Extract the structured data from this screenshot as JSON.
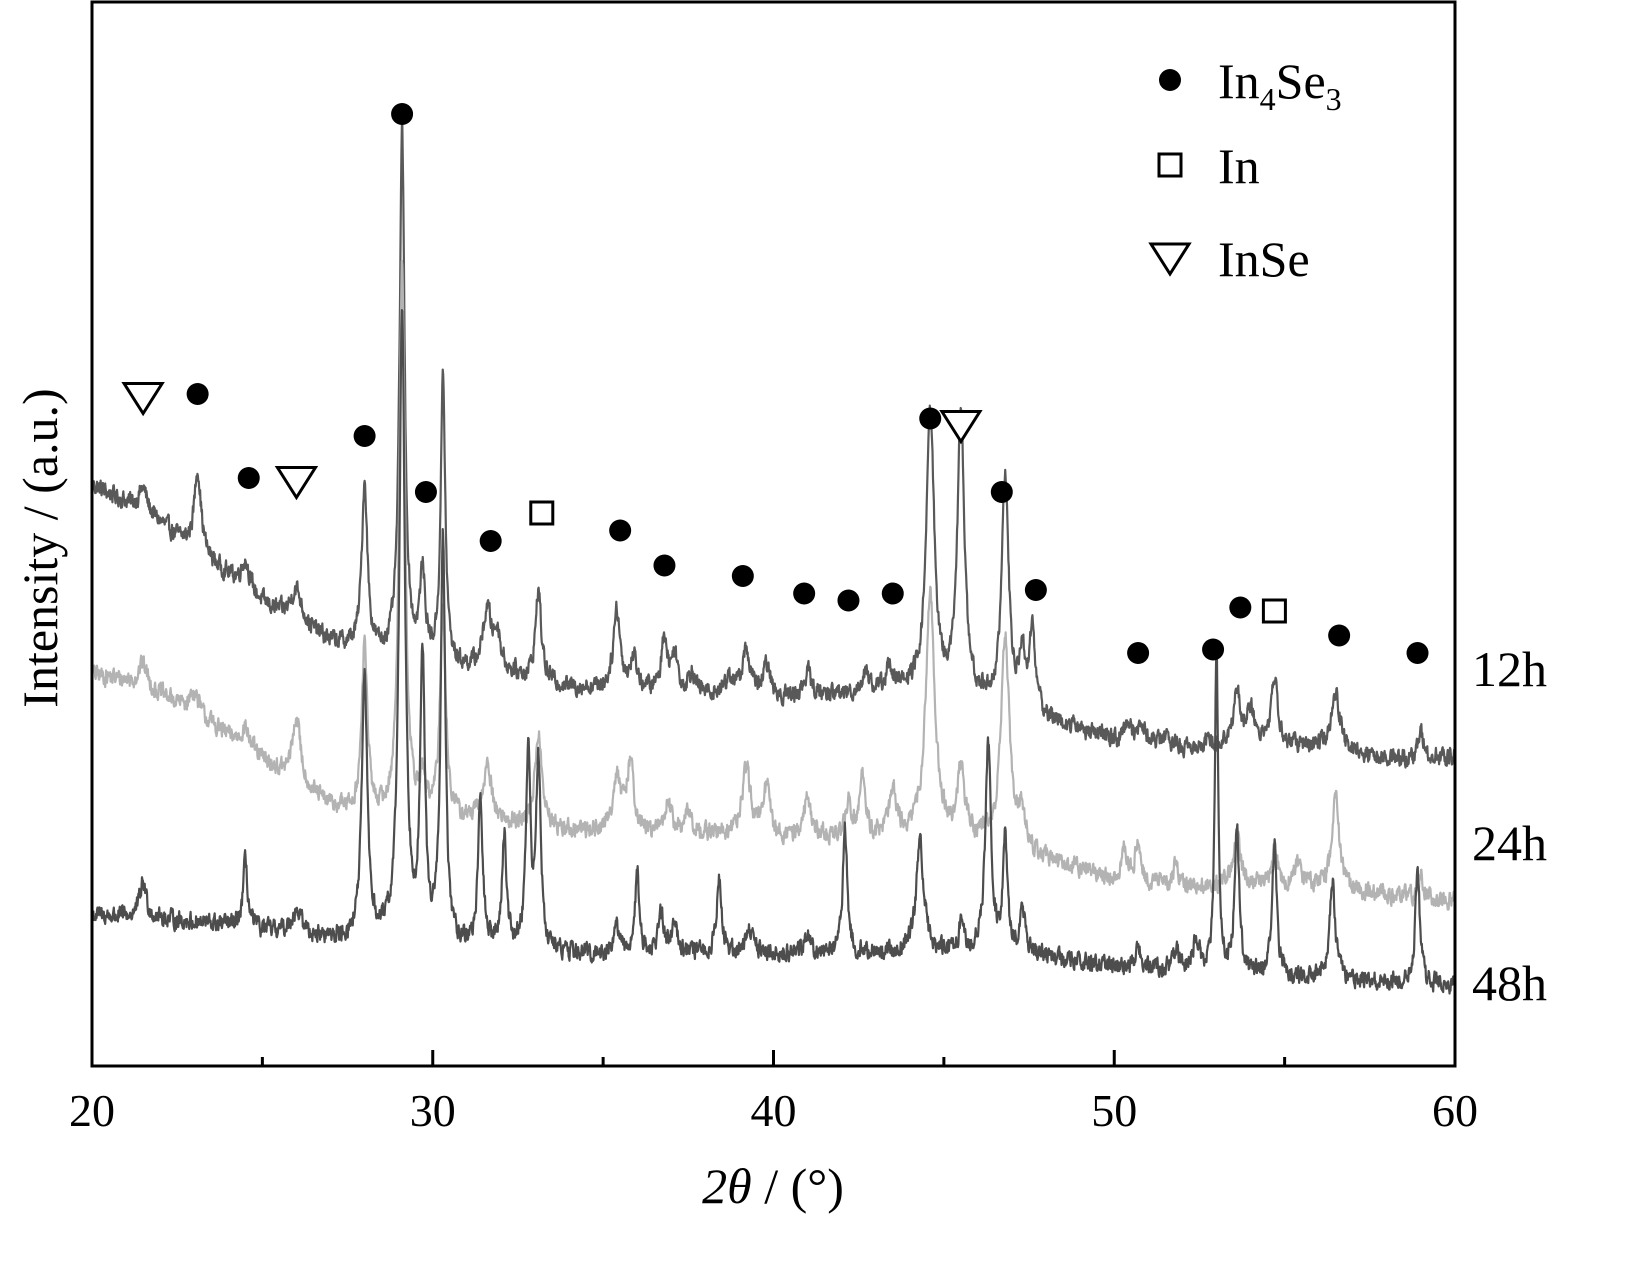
{
  "chart_data": {
    "type": "line",
    "title": "",
    "xlabel_parts": {
      "italic": "2θ",
      "rest": " / (°)"
    },
    "ylabel": "Intensity / (a.u.)",
    "xlim": [
      20,
      60
    ],
    "x_ticks": [
      20,
      30,
      40,
      50,
      60
    ],
    "x_minor_ticks": [
      25,
      35,
      45,
      55
    ],
    "y_ticks_shown": false,
    "grid": false,
    "legend": {
      "placement": "top-right",
      "entries": [
        {
          "marker": "filled-circle",
          "parts": [
            "In",
            "4",
            "Se",
            "3"
          ]
        },
        {
          "marker": "open-square",
          "label": "In"
        },
        {
          "marker": "open-triangle-down",
          "label": "InSe"
        }
      ]
    },
    "series": [
      {
        "name": "12h",
        "color": "#595959",
        "baseline": [
          [
            20,
            7.5
          ],
          [
            21,
            7.25
          ],
          [
            22,
            6.95
          ],
          [
            23,
            6.55
          ],
          [
            24,
            6.2
          ],
          [
            25,
            5.8
          ],
          [
            26,
            5.5
          ],
          [
            27,
            5.25
          ],
          [
            28,
            5.1
          ],
          [
            29,
            5.0
          ],
          [
            30,
            4.9
          ],
          [
            32,
            4.8
          ],
          [
            34,
            4.6
          ],
          [
            36,
            4.55
          ],
          [
            38,
            4.5
          ],
          [
            40,
            4.45
          ],
          [
            42,
            4.5
          ],
          [
            44,
            4.55
          ],
          [
            46,
            4.4
          ],
          [
            48,
            4.15
          ],
          [
            50,
            3.85
          ],
          [
            52,
            3.75
          ],
          [
            54,
            3.85
          ],
          [
            56,
            3.75
          ],
          [
            58,
            3.6
          ],
          [
            60,
            3.6
          ]
        ],
        "peaks": [
          [
            21.5,
            0.35,
            0.15
          ],
          [
            23.1,
            1.2,
            0.12
          ],
          [
            24.5,
            0.4,
            0.15
          ],
          [
            26.0,
            0.5,
            0.2
          ],
          [
            28.0,
            2.4,
            0.1
          ],
          [
            29.1,
            7.5,
            0.09
          ],
          [
            29.7,
            1.2,
            0.1
          ],
          [
            30.3,
            4.1,
            0.08
          ],
          [
            31.6,
            0.85,
            0.15
          ],
          [
            31.9,
            0.5,
            0.12
          ],
          [
            33.1,
            1.3,
            0.1
          ],
          [
            35.4,
            1.15,
            0.12
          ],
          [
            35.9,
            0.45,
            0.12
          ],
          [
            36.8,
            0.8,
            0.1
          ],
          [
            37.1,
            0.55,
            0.1
          ],
          [
            37.6,
            0.3,
            0.12
          ],
          [
            38.7,
            0.25,
            0.15
          ],
          [
            39.2,
            0.65,
            0.14
          ],
          [
            39.8,
            0.45,
            0.12
          ],
          [
            41.0,
            0.35,
            0.12
          ],
          [
            42.7,
            0.3,
            0.12
          ],
          [
            43.4,
            0.35,
            0.12
          ],
          [
            44.6,
            4.0,
            0.14
          ],
          [
            45.5,
            4.1,
            0.12
          ],
          [
            46.8,
            3.3,
            0.12
          ],
          [
            47.3,
            0.8,
            0.1
          ],
          [
            47.6,
            1.2,
            0.1
          ],
          [
            50.4,
            0.25,
            0.12
          ],
          [
            50.8,
            0.3,
            0.12
          ],
          [
            51.5,
            0.15,
            0.12
          ],
          [
            53.6,
            0.7,
            0.12
          ],
          [
            54.0,
            0.45,
            0.12
          ],
          [
            54.7,
            0.95,
            0.1
          ],
          [
            56.5,
            0.8,
            0.14
          ],
          [
            59.0,
            0.35,
            0.1
          ]
        ]
      },
      {
        "name": "24h",
        "color": "#b3b3b3",
        "baseline": [
          [
            20,
            4.8
          ],
          [
            21,
            4.7
          ],
          [
            22,
            4.5
          ],
          [
            23,
            4.25
          ],
          [
            24,
            3.9
          ],
          [
            25,
            3.55
          ],
          [
            26,
            3.2
          ],
          [
            27,
            2.9
          ],
          [
            28,
            2.75
          ],
          [
            29,
            2.7
          ],
          [
            30,
            2.7
          ],
          [
            32,
            2.65
          ],
          [
            34,
            2.55
          ],
          [
            36,
            2.5
          ],
          [
            38,
            2.5
          ],
          [
            40,
            2.45
          ],
          [
            42,
            2.45
          ],
          [
            44,
            2.45
          ],
          [
            46,
            2.4
          ],
          [
            48,
            2.15
          ],
          [
            50,
            1.85
          ],
          [
            52,
            1.75
          ],
          [
            54,
            1.8
          ],
          [
            56,
            1.75
          ],
          [
            58,
            1.65
          ],
          [
            60,
            1.55
          ]
        ],
        "peaks": [
          [
            21.5,
            0.35,
            0.15
          ],
          [
            23.0,
            0.3,
            0.15
          ],
          [
            24.5,
            0.3,
            0.15
          ],
          [
            26.0,
            0.95,
            0.15
          ],
          [
            28.0,
            2.45,
            0.1
          ],
          [
            29.1,
            8.0,
            0.1
          ],
          [
            29.7,
            0.5,
            0.1
          ],
          [
            30.3,
            3.0,
            0.1
          ],
          [
            31.6,
            0.8,
            0.15
          ],
          [
            33.1,
            1.35,
            0.12
          ],
          [
            35.4,
            0.8,
            0.14
          ],
          [
            35.8,
            1.0,
            0.12
          ],
          [
            36.9,
            0.45,
            0.12
          ],
          [
            37.5,
            0.3,
            0.12
          ],
          [
            39.2,
            0.95,
            0.15
          ],
          [
            39.8,
            0.7,
            0.12
          ],
          [
            41.0,
            0.6,
            0.12
          ],
          [
            42.2,
            0.5,
            0.1
          ],
          [
            42.6,
            0.9,
            0.1
          ],
          [
            43.5,
            0.65,
            0.12
          ],
          [
            44.6,
            3.5,
            0.16
          ],
          [
            45.5,
            1.0,
            0.12
          ],
          [
            46.8,
            3.0,
            0.15
          ],
          [
            47.3,
            0.5,
            0.12
          ],
          [
            50.3,
            0.4,
            0.1
          ],
          [
            50.7,
            0.6,
            0.1
          ],
          [
            51.8,
            0.3,
            0.1
          ],
          [
            53.6,
            0.65,
            0.12
          ],
          [
            54.7,
            0.55,
            0.1
          ],
          [
            55.4,
            0.35,
            0.1
          ],
          [
            56.5,
            1.35,
            0.12
          ],
          [
            59.0,
            0.3,
            0.1
          ]
        ]
      },
      {
        "name": "48h",
        "color": "#4d4d4d",
        "baseline": [
          [
            20,
            1.35
          ],
          [
            22,
            1.3
          ],
          [
            24,
            1.2
          ],
          [
            26,
            1.05
          ],
          [
            28,
            0.95
          ],
          [
            30,
            0.9
          ],
          [
            32,
            0.85
          ],
          [
            34,
            0.8
          ],
          [
            36,
            0.75
          ],
          [
            38,
            0.8
          ],
          [
            40,
            0.8
          ],
          [
            42,
            0.8
          ],
          [
            44,
            0.8
          ],
          [
            46,
            0.8
          ],
          [
            48,
            0.75
          ],
          [
            50,
            0.6
          ],
          [
            52,
            0.55
          ],
          [
            54,
            0.5
          ],
          [
            56,
            0.45
          ],
          [
            58,
            0.4
          ],
          [
            60,
            0.35
          ]
        ],
        "peaks": [
          [
            21.5,
            0.5,
            0.12
          ],
          [
            24.5,
            0.95,
            0.08
          ],
          [
            26.0,
            0.35,
            0.2
          ],
          [
            28.0,
            3.7,
            0.1
          ],
          [
            29.1,
            9.0,
            0.1
          ],
          [
            29.7,
            4.0,
            0.08
          ],
          [
            30.3,
            5.8,
            0.08
          ],
          [
            31.4,
            2.1,
            0.08
          ],
          [
            32.1,
            1.6,
            0.08
          ],
          [
            32.8,
            2.8,
            0.08
          ],
          [
            33.1,
            2.7,
            0.08
          ],
          [
            35.4,
            0.4,
            0.12
          ],
          [
            36.0,
            1.2,
            0.08
          ],
          [
            36.7,
            0.6,
            0.1
          ],
          [
            37.1,
            0.5,
            0.1
          ],
          [
            38.4,
            1.1,
            0.08
          ],
          [
            39.3,
            0.35,
            0.14
          ],
          [
            41.0,
            0.3,
            0.1
          ],
          [
            42.1,
            1.75,
            0.08
          ],
          [
            44.3,
            1.55,
            0.14
          ],
          [
            45.5,
            0.35,
            0.1
          ],
          [
            46.3,
            3.0,
            0.1
          ],
          [
            46.8,
            1.6,
            0.08
          ],
          [
            47.3,
            0.6,
            0.1
          ],
          [
            50.7,
            0.35,
            0.1
          ],
          [
            51.8,
            0.3,
            0.1
          ],
          [
            52.4,
            0.5,
            0.1
          ],
          [
            53.0,
            4.6,
            0.06
          ],
          [
            53.6,
            2.1,
            0.08
          ],
          [
            54.7,
            1.85,
            0.08
          ],
          [
            56.4,
            1.4,
            0.1
          ],
          [
            58.9,
            1.6,
            0.08
          ]
        ]
      }
    ],
    "peak_markers": [
      {
        "phase": "InSe",
        "marker": "open-triangle-down",
        "x": 21.5,
        "y": 8.75
      },
      {
        "phase": "In4Se3",
        "marker": "filled-circle",
        "x": 23.1,
        "y": 8.8
      },
      {
        "phase": "In4Se3",
        "marker": "filled-circle",
        "x": 24.6,
        "y": 7.6
      },
      {
        "phase": "InSe",
        "marker": "open-triangle-down",
        "x": 26.0,
        "y": 7.55
      },
      {
        "phase": "In4Se3",
        "marker": "filled-circle",
        "x": 28.0,
        "y": 8.2
      },
      {
        "phase": "In4Se3",
        "marker": "filled-circle",
        "x": 29.1,
        "y": 12.8
      },
      {
        "phase": "In4Se3",
        "marker": "filled-circle",
        "x": 29.8,
        "y": 7.4
      },
      {
        "phase": "In4Se3",
        "marker": "filled-circle",
        "x": 31.7,
        "y": 6.7
      },
      {
        "phase": "In",
        "marker": "open-square",
        "x": 33.2,
        "y": 7.1
      },
      {
        "phase": "In4Se3",
        "marker": "filled-circle",
        "x": 35.5,
        "y": 6.85
      },
      {
        "phase": "In4Se3",
        "marker": "filled-circle",
        "x": 36.8,
        "y": 6.35
      },
      {
        "phase": "In4Se3",
        "marker": "filled-circle",
        "x": 39.1,
        "y": 6.2
      },
      {
        "phase": "In4Se3",
        "marker": "filled-circle",
        "x": 40.9,
        "y": 5.95
      },
      {
        "phase": "In4Se3",
        "marker": "filled-circle",
        "x": 42.2,
        "y": 5.85
      },
      {
        "phase": "In4Se3",
        "marker": "filled-circle",
        "x": 43.5,
        "y": 5.95
      },
      {
        "phase": "In4Se3",
        "marker": "filled-circle",
        "x": 44.6,
        "y": 8.45
      },
      {
        "phase": "InSe",
        "marker": "open-triangle-down",
        "x": 45.5,
        "y": 8.35
      },
      {
        "phase": "In4Se3",
        "marker": "filled-circle",
        "x": 46.7,
        "y": 7.4
      },
      {
        "phase": "In4Se3",
        "marker": "filled-circle",
        "x": 47.7,
        "y": 6.0
      },
      {
        "phase": "In4Se3",
        "marker": "filled-circle",
        "x": 50.7,
        "y": 5.1
      },
      {
        "phase": "In4Se3",
        "marker": "filled-circle",
        "x": 52.9,
        "y": 5.15
      },
      {
        "phase": "In4Se3",
        "marker": "filled-circle",
        "x": 53.7,
        "y": 5.75
      },
      {
        "phase": "In",
        "marker": "open-square",
        "x": 54.7,
        "y": 5.7
      },
      {
        "phase": "In4Se3",
        "marker": "filled-circle",
        "x": 56.6,
        "y": 5.35
      },
      {
        "phase": "In4Se3",
        "marker": "filled-circle",
        "x": 58.9,
        "y": 5.1
      }
    ],
    "ylim": [
      -0.8,
      14.4
    ]
  }
}
